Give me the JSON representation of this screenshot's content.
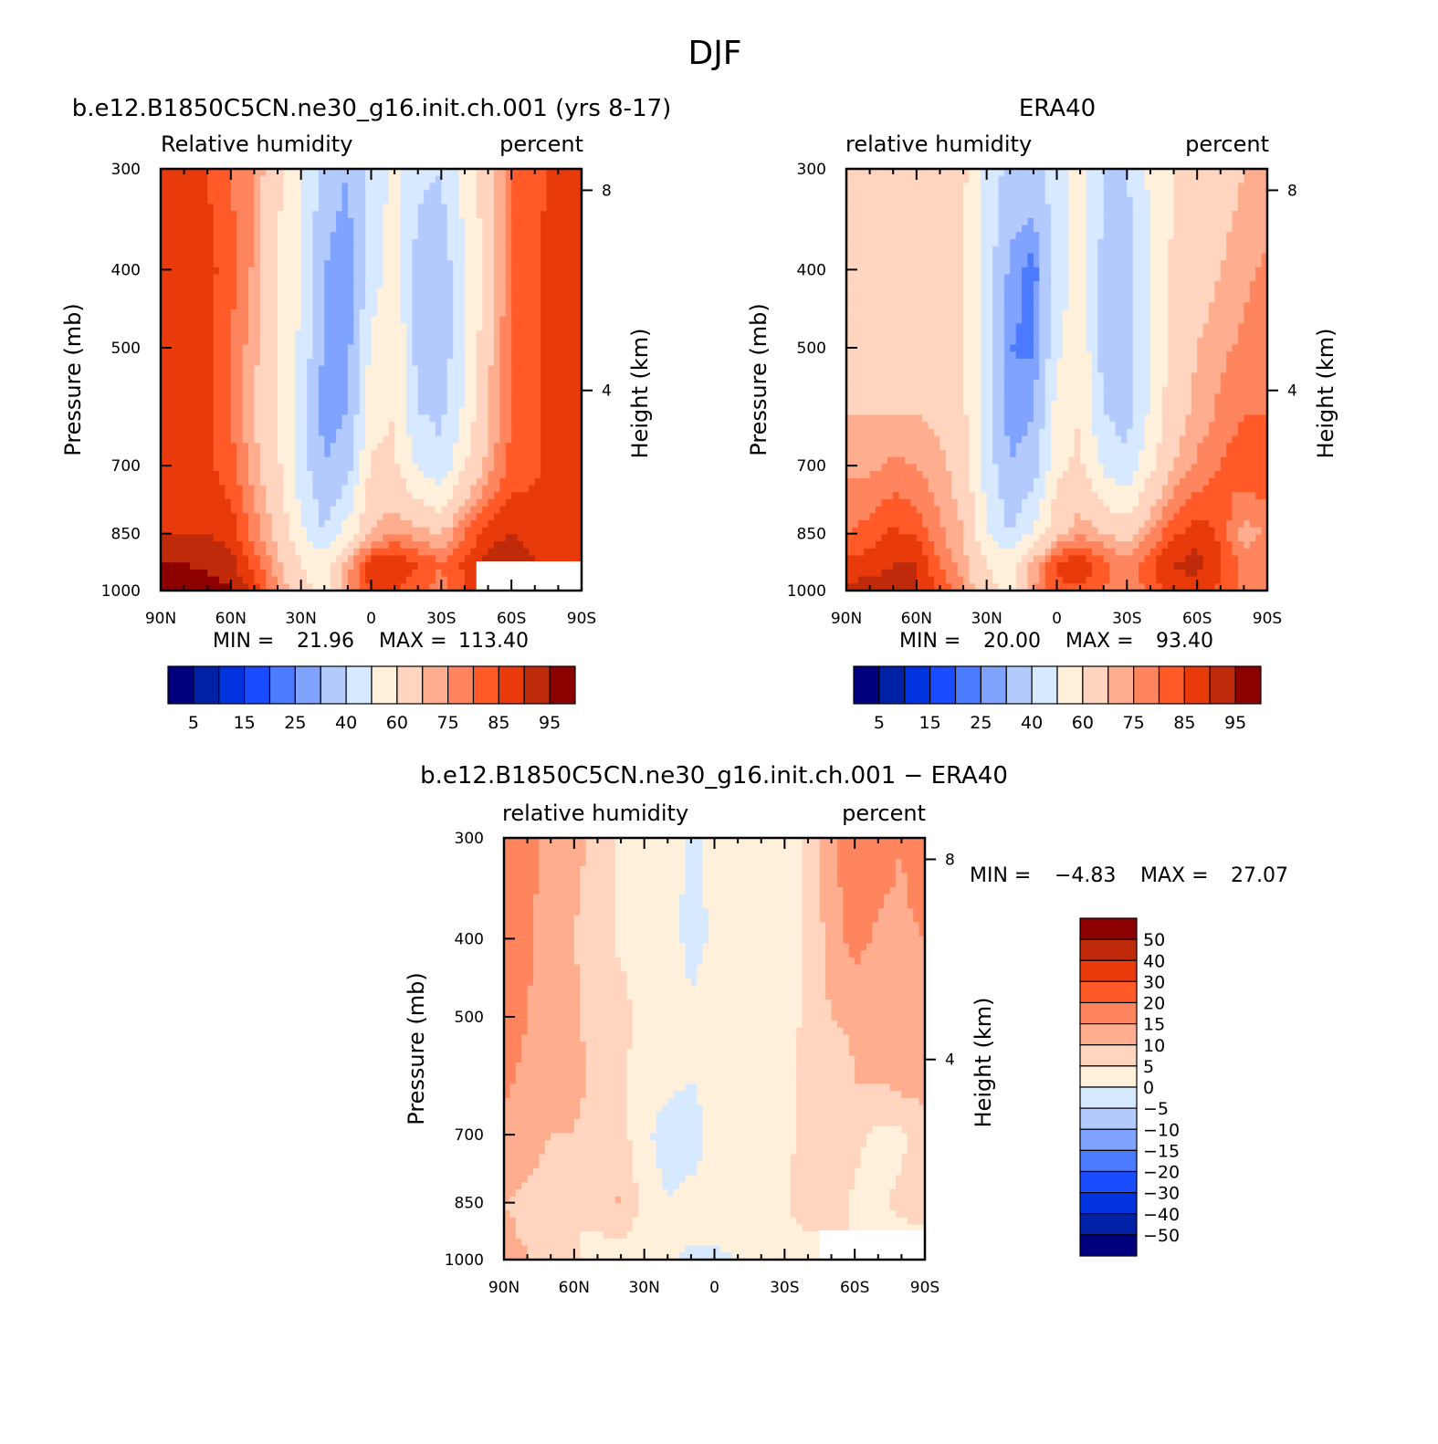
{
  "title": "DJF",
  "palettes": {
    "absolute": [
      "#00007f",
      "#0021a6",
      "#0033e0",
      "#1a4dff",
      "#4d7bff",
      "#80a3ff",
      "#b3caff",
      "#d7e9ff",
      "#fff0dc",
      "#ffd5bf",
      "#ffad8f",
      "#ff855e",
      "#ff5a28",
      "#e83a0a",
      "#bf2a0a",
      "#8c0000"
    ],
    "difference": [
      "#00007f",
      "#0021a6",
      "#0033e0",
      "#1a4dff",
      "#4d7bff",
      "#80a3ff",
      "#b3caff",
      "#d7e9ff",
      "#fff0dc",
      "#ffd5bf",
      "#ffad8f",
      "#ff855e",
      "#ff5a28",
      "#e83a0a",
      "#bf2a0a",
      "#8c0000"
    ]
  },
  "chart_data": [
    {
      "type": "heatmap",
      "title": "b.e12.B1850C5CN.ne30_g16.init.ch.001 (yrs 8-17)",
      "left_label": "Relative humidity",
      "right_label": "percent",
      "ylabel": "Pressure (mb)",
      "y2label": "Height (km)",
      "x_ticks": [
        "90N",
        "60N",
        "30N",
        "0",
        "30S",
        "60S",
        "90S"
      ],
      "y_ticks": [
        300,
        400,
        500,
        700,
        850,
        1000
      ],
      "y2_ticks": [
        8,
        4
      ],
      "ylim": [
        300,
        1000
      ],
      "xlim": [
        90,
        -90
      ],
      "min_label": "MIN =",
      "min_value": "21.96",
      "max_label": "MAX =",
      "max_value": "113.40",
      "colorbar_labels": [
        "5",
        "15",
        "25",
        "40",
        "60",
        "75",
        "85",
        "95"
      ],
      "mask": {
        "lat_from": -45,
        "lat_to": -90,
        "p_from": 920,
        "p_to": 1000
      },
      "field": {
        "lats": [
          90,
          80,
          70,
          60,
          50,
          40,
          30,
          20,
          10,
          0,
          -10,
          -20,
          -30,
          -40,
          -50,
          -60,
          -70,
          -80,
          -90
        ],
        "levels": [
          300,
          400,
          500,
          600,
          700,
          850,
          925,
          1000
        ],
        "values": [
          [
            85,
            85,
            85,
            80,
            75,
            62,
            52,
            35,
            30,
            45,
            52,
            42,
            40,
            55,
            65,
            80,
            82,
            88,
            90
          ],
          [
            88,
            88,
            87,
            82,
            74,
            60,
            50,
            30,
            25,
            45,
            55,
            36,
            34,
            48,
            65,
            80,
            84,
            90,
            90
          ],
          [
            88,
            88,
            86,
            80,
            72,
            60,
            48,
            28,
            27,
            52,
            60,
            36,
            34,
            48,
            68,
            80,
            84,
            88,
            88
          ],
          [
            88,
            88,
            86,
            80,
            70,
            60,
            45,
            26,
            30,
            56,
            60,
            40,
            38,
            52,
            70,
            80,
            84,
            88,
            88
          ],
          [
            88,
            88,
            86,
            82,
            72,
            62,
            45,
            30,
            35,
            62,
            62,
            48,
            42,
            60,
            72,
            82,
            84,
            88,
            88
          ],
          [
            90,
            90,
            90,
            88,
            78,
            68,
            52,
            40,
            55,
            70,
            75,
            72,
            70,
            80,
            88,
            90,
            88,
            86,
            86
          ],
          [
            95,
            95,
            94,
            92,
            82,
            72,
            60,
            56,
            72,
            88,
            90,
            85,
            80,
            86,
            92,
            94,
            90,
            88,
            88
          ],
          [
            97,
            97,
            97,
            96,
            88,
            76,
            62,
            58,
            76,
            86,
            86,
            82,
            78,
            84,
            90,
            92,
            90,
            88,
            88
          ]
        ]
      }
    },
    {
      "type": "heatmap",
      "title": "ERA40",
      "left_label": "relative humidity",
      "right_label": "percent",
      "ylabel": "Pressure (mb)",
      "y2label": "Height (km)",
      "x_ticks": [
        "90N",
        "60N",
        "30N",
        "0",
        "30S",
        "60S",
        "90S"
      ],
      "y_ticks": [
        300,
        400,
        500,
        700,
        850,
        1000
      ],
      "y2_ticks": [
        8,
        4
      ],
      "ylim": [
        300,
        1000
      ],
      "xlim": [
        90,
        -90
      ],
      "min_label": "MIN =",
      "min_value": "20.00",
      "max_label": "MAX =",
      "max_value": "93.40",
      "colorbar_labels": [
        "5",
        "15",
        "25",
        "40",
        "60",
        "75",
        "85",
        "95"
      ],
      "field": {
        "lats": [
          90,
          80,
          70,
          60,
          50,
          40,
          30,
          20,
          10,
          0,
          -10,
          -20,
          -30,
          -40,
          -50,
          -60,
          -70,
          -80,
          -90
        ],
        "levels": [
          300,
          400,
          500,
          600,
          700,
          850,
          925,
          1000
        ],
        "values": [
          [
            66,
            66,
            66,
            66,
            64,
            62,
            48,
            36,
            36,
            46,
            54,
            40,
            40,
            52,
            60,
            62,
            66,
            70,
            72
          ],
          [
            66,
            66,
            66,
            66,
            65,
            60,
            45,
            28,
            22,
            44,
            55,
            37,
            34,
            50,
            62,
            66,
            70,
            74,
            76
          ],
          [
            68,
            68,
            68,
            68,
            66,
            60,
            45,
            25,
            24,
            48,
            58,
            36,
            35,
            50,
            64,
            70,
            74,
            76,
            78
          ],
          [
            70,
            70,
            70,
            70,
            68,
            62,
            45,
            26,
            30,
            54,
            60,
            40,
            36,
            52,
            66,
            72,
            76,
            80,
            80
          ],
          [
            74,
            74,
            76,
            75,
            72,
            66,
            46,
            30,
            34,
            58,
            62,
            48,
            42,
            58,
            70,
            76,
            80,
            84,
            84
          ],
          [
            80,
            82,
            86,
            84,
            76,
            70,
            50,
            40,
            52,
            68,
            74,
            70,
            66,
            76,
            84,
            88,
            84,
            72,
            76
          ],
          [
            86,
            88,
            90,
            90,
            80,
            72,
            60,
            56,
            72,
            86,
            90,
            82,
            76,
            84,
            90,
            92,
            86,
            78,
            80
          ],
          [
            92,
            92,
            92,
            90,
            84,
            76,
            62,
            58,
            74,
            84,
            84,
            80,
            76,
            82,
            88,
            88,
            84,
            78,
            80
          ]
        ]
      }
    },
    {
      "type": "heatmap",
      "title": "b.e12.B1850C5CN.ne30_g16.init.ch.001 − ERA40",
      "left_label": "relative humidity",
      "right_label": "percent",
      "ylabel": "Pressure (mb)",
      "y2label": "Height (km)",
      "x_ticks": [
        "90N",
        "60N",
        "30N",
        "0",
        "30S",
        "60S",
        "90S"
      ],
      "y_ticks": [
        300,
        400,
        500,
        700,
        850,
        1000
      ],
      "y2_ticks": [
        8,
        4
      ],
      "ylim": [
        300,
        1000
      ],
      "xlim": [
        90,
        -90
      ],
      "min_label": "MIN =",
      "min_value": "−4.83",
      "max_label": "MAX =",
      "max_value": "27.07",
      "colorbar_labels": [
        "50",
        "40",
        "30",
        "20",
        "15",
        "10",
        "5",
        "0",
        "−5",
        "−10",
        "−15",
        "−20",
        "−30",
        "−40",
        "−50"
      ],
      "mask": {
        "lat_from": -45,
        "lat_to": -90,
        "p_from": 920,
        "p_to": 1000
      },
      "field": {
        "lats": [
          90,
          80,
          70,
          60,
          50,
          40,
          30,
          20,
          10,
          0,
          -10,
          -20,
          -30,
          -40,
          -50,
          -60,
          -70,
          -80,
          -90
        ],
        "levels": [
          300,
          400,
          500,
          600,
          700,
          850,
          925,
          1000
        ],
        "values": [
          [
            19,
            17,
            13,
            11,
            9,
            4,
            3,
            2,
            -1,
            1,
            3,
            5,
            3,
            6,
            14,
            19,
            17,
            15,
            18
          ],
          [
            18,
            16,
            12,
            10,
            8,
            4,
            3,
            3,
            -2,
            1,
            2,
            4,
            3,
            6,
            12,
            17,
            14,
            14,
            15
          ],
          [
            17,
            15,
            12,
            11,
            8,
            7,
            3,
            3,
            1,
            3,
            3,
            4,
            3,
            6,
            10,
            11,
            10,
            12,
            12
          ],
          [
            16,
            14,
            12,
            11,
            9,
            6,
            2,
            1,
            0,
            2,
            2,
            3,
            3,
            7,
            6,
            10,
            10,
            12,
            12
          ],
          [
            13,
            12,
            10,
            10,
            8,
            7,
            1,
            -2,
            -3,
            2,
            2,
            2,
            3,
            7,
            6,
            6,
            4,
            4,
            8
          ],
          [
            10,
            9,
            8,
            8,
            7,
            11,
            3,
            0,
            2,
            2,
            2,
            3,
            4,
            10,
            10,
            4,
            4,
            6,
            10
          ],
          [
            11,
            9,
            7,
            5,
            5,
            7,
            2,
            1,
            2,
            3,
            3,
            3,
            3,
            5,
            5,
            5,
            4,
            4,
            4
          ],
          [
            14,
            10,
            8,
            6,
            3,
            -1,
            2,
            2,
            -2,
            -3,
            1,
            1,
            2,
            3,
            3,
            4,
            4,
            4,
            4
          ]
        ]
      }
    }
  ]
}
